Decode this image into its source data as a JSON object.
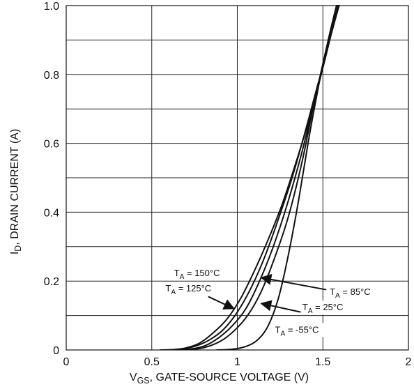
{
  "chart_data": {
    "type": "line",
    "title": "",
    "xlabel": "V_GS, GATE-SOURCE VOLTAGE (V)",
    "xlabel_parts": {
      "main": "V",
      "sub": "GS",
      "rest": ", GATE-SOURCE VOLTAGE (V)"
    },
    "ylabel": "I_D, DRAIN CURRENT (A)",
    "ylabel_parts": {
      "main": "I",
      "sub": "D",
      "rest": ", DRAIN CURRENT (A)"
    },
    "xlim": [
      0,
      2
    ],
    "ylim": [
      0,
      1.0
    ],
    "x_ticks": [
      0,
      0.5,
      1,
      1.5,
      2
    ],
    "x_tick_labels": [
      "0",
      "0.5",
      "1",
      "1.5",
      "2"
    ],
    "y_ticks": [
      0,
      0.2,
      0.4,
      0.6,
      0.8,
      1.0
    ],
    "y_tick_labels": [
      "0",
      "0.2",
      "0.4",
      "0.6",
      "0.8",
      "1.0"
    ],
    "x_grid_step": 0.5,
    "y_grid_step": 0.1,
    "grid": true,
    "legend": "none",
    "line_color": "#111111",
    "grid_color": "#222222",
    "series": [
      {
        "name": "T_A = 150°C",
        "x": [
          0.55,
          0.62,
          0.7,
          0.78,
          0.86,
          0.94,
          1.02,
          1.1,
          1.18,
          1.26,
          1.34,
          1.42,
          1.5,
          1.55,
          1.6
        ],
        "y": [
          0,
          0.001,
          0.006,
          0.02,
          0.05,
          0.09,
          0.15,
          0.23,
          0.32,
          0.42,
          0.54,
          0.67,
          0.82,
          0.92,
          1.01
        ]
      },
      {
        "name": "T_A = 125°C",
        "x": [
          0.6,
          0.68,
          0.76,
          0.84,
          0.92,
          1.0,
          1.08,
          1.16,
          1.24,
          1.32,
          1.4,
          1.47,
          1.5,
          1.55,
          1.6
        ],
        "y": [
          0,
          0.003,
          0.012,
          0.03,
          0.06,
          0.11,
          0.18,
          0.27,
          0.38,
          0.5,
          0.64,
          0.77,
          0.82,
          0.92,
          1.01
        ]
      },
      {
        "name": "T_A = 85°C",
        "x": [
          0.65,
          0.73,
          0.81,
          0.89,
          0.97,
          1.05,
          1.13,
          1.21,
          1.29,
          1.37,
          1.43,
          1.5,
          1.55,
          1.6
        ],
        "y": [
          0,
          0.003,
          0.012,
          0.035,
          0.07,
          0.12,
          0.2,
          0.3,
          0.42,
          0.56,
          0.68,
          0.82,
          0.92,
          1.01
        ]
      },
      {
        "name": "T_A = 25°C",
        "x": [
          0.7,
          0.8,
          0.9,
          0.98,
          1.06,
          1.14,
          1.22,
          1.3,
          1.38,
          1.45,
          1.5,
          1.55,
          1.6
        ],
        "y": [
          0,
          0.006,
          0.025,
          0.055,
          0.1,
          0.17,
          0.27,
          0.39,
          0.55,
          0.72,
          0.83,
          0.93,
          1.02
        ]
      },
      {
        "name": "T_A = -55°C",
        "x": [
          0.88,
          0.94,
          1.0,
          1.06,
          1.12,
          1.18,
          1.24,
          1.3,
          1.36,
          1.42,
          1.48,
          1.5,
          1.55,
          1.6
        ],
        "y": [
          0,
          0.001,
          0.004,
          0.012,
          0.03,
          0.07,
          0.15,
          0.28,
          0.44,
          0.62,
          0.78,
          0.83,
          0.94,
          1.04
        ]
      }
    ],
    "annotations": [
      {
        "main": "T",
        "sub": "A",
        "rest": " = 150°C",
        "text_at": [
          0.63,
          0.215
        ],
        "arrow": false
      },
      {
        "main": "T",
        "sub": "A",
        "rest": " = 125°C",
        "text_at": [
          0.58,
          0.17
        ],
        "arrow": true,
        "arrow_from": [
          0.83,
          0.155
        ],
        "arrow_to": [
          0.98,
          0.12
        ]
      },
      {
        "main": "T",
        "sub": "A",
        "rest": " = 85°C",
        "text_at": [
          1.54,
          0.16
        ],
        "arrow": true,
        "arrow_from": [
          1.52,
          0.175
        ],
        "arrow_to": [
          1.14,
          0.21
        ]
      },
      {
        "main": "T",
        "sub": "A",
        "rest": " = 25°C",
        "text_at": [
          1.38,
          0.115
        ],
        "arrow": true,
        "arrow_from": [
          1.37,
          0.11
        ],
        "arrow_to": [
          1.14,
          0.135
        ]
      },
      {
        "main": "T",
        "sub": "A",
        "rest": " = -55°C",
        "text_at": [
          1.22,
          0.05
        ],
        "arrow": false
      }
    ]
  }
}
